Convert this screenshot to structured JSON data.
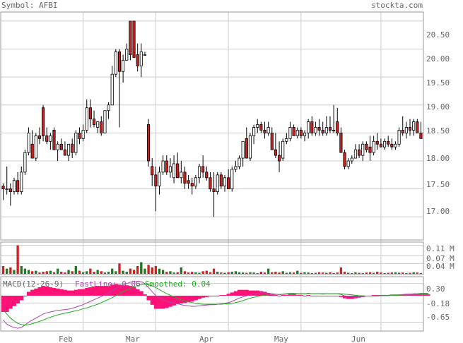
{
  "header": {
    "symbol": "Symbol: AFBI",
    "brand": "stockta.com"
  },
  "price_panel": {
    "y_ticks": [
      "20.50",
      "20.00",
      "19.50",
      "19.00",
      "18.50",
      "18.00",
      "17.50",
      "17.00"
    ]
  },
  "volume_panel": {
    "y_ticks": [
      "0.11 M",
      "0.07 M",
      "0.04 M"
    ]
  },
  "macd_panel": {
    "label": "MACD(12-26-9)",
    "fast_label": "FastLine: 0.06",
    "smooth_label": "Smoothed: 0.04",
    "y_ticks": [
      "0.30",
      "-0.18",
      "-0.65"
    ]
  },
  "x_labels": [
    "Feb",
    "Mar",
    "Apr",
    "May",
    "Jun"
  ],
  "colors": {
    "up": "#ffffff",
    "down": "#cc2222",
    "vol_up": "#227722",
    "vol_down": "#cc2222",
    "fast": "#aa44aa",
    "smooth": "#22aa22",
    "hist": "#ff1177"
  },
  "chart_data": {
    "type": "candlestick",
    "price_ylim": [
      16.6,
      20.65
    ],
    "volume_ylim": [
      0,
      0.12
    ],
    "macd_ylim": [
      -0.85,
      0.45
    ],
    "month_starts": {
      "Feb": 22,
      "Mar": 42,
      "Apr": 62,
      "May": 82,
      "Jun": 104
    },
    "ohlc": [
      [
        17.55,
        17.6,
        17.3,
        17.5
      ],
      [
        17.5,
        17.9,
        17.4,
        17.5
      ],
      [
        17.5,
        17.6,
        17.2,
        17.45
      ],
      [
        17.45,
        17.7,
        17.4,
        17.65
      ],
      [
        17.65,
        17.8,
        17.4,
        17.45
      ],
      [
        17.45,
        17.9,
        17.4,
        17.8
      ],
      [
        17.8,
        18.2,
        17.75,
        18.15
      ],
      [
        18.15,
        18.6,
        18.1,
        18.5
      ],
      [
        18.3,
        18.55,
        18.05,
        18.05
      ],
      [
        18.05,
        18.5,
        18.0,
        18.45
      ],
      [
        18.45,
        18.6,
        18.3,
        18.4
      ],
      [
        18.95,
        19.0,
        18.35,
        18.45
      ],
      [
        18.45,
        18.6,
        18.3,
        18.35
      ],
      [
        18.35,
        18.5,
        18.2,
        18.45
      ],
      [
        18.55,
        18.6,
        18.2,
        18.2
      ],
      [
        18.2,
        18.35,
        18.0,
        18.3
      ],
      [
        18.3,
        18.4,
        18.2,
        18.2
      ],
      [
        18.2,
        18.35,
        18.1,
        18.1
      ],
      [
        18.1,
        18.3,
        18.0,
        18.3
      ],
      [
        18.3,
        18.4,
        18.05,
        18.15
      ],
      [
        18.15,
        18.55,
        18.1,
        18.5
      ],
      [
        18.5,
        18.6,
        18.3,
        18.4
      ],
      [
        18.4,
        18.65,
        18.35,
        18.55
      ],
      [
        18.55,
        19.1,
        18.5,
        18.95
      ],
      [
        18.95,
        19.1,
        18.6,
        18.75
      ],
      [
        18.75,
        18.9,
        18.6,
        18.65
      ],
      [
        18.6,
        18.7,
        18.5,
        18.7
      ],
      [
        18.7,
        18.8,
        18.45,
        18.5
      ],
      [
        18.5,
        18.9,
        18.5,
        18.9
      ],
      [
        18.9,
        19.05,
        18.75,
        19.0
      ],
      [
        19.0,
        19.7,
        19.0,
        19.55
      ],
      [
        19.55,
        20.0,
        19.5,
        19.95
      ],
      [
        19.95,
        20.0,
        18.6,
        19.6
      ],
      [
        19.6,
        19.9,
        19.4,
        19.8
      ],
      [
        19.8,
        20.1,
        19.8,
        20.0
      ],
      [
        20.5,
        20.5,
        19.8,
        19.9
      ],
      [
        20.5,
        20.5,
        19.85,
        19.85
      ],
      [
        19.9,
        20.1,
        19.6,
        19.7
      ],
      [
        19.7,
        20.1,
        19.5,
        19.95
      ],
      [
        19.9,
        19.95,
        19.9,
        19.9
      ],
      [
        18.65,
        18.75,
        17.9,
        18.0
      ],
      [
        17.9,
        18.05,
        17.55,
        17.75
      ],
      [
        17.75,
        17.9,
        17.1,
        17.55
      ],
      [
        17.55,
        17.9,
        17.4,
        17.8
      ],
      [
        17.8,
        18.1,
        17.75,
        18.0
      ],
      [
        18.0,
        18.1,
        17.75,
        17.8
      ],
      [
        17.8,
        18.05,
        17.7,
        17.9
      ],
      [
        17.7,
        18.1,
        17.6,
        17.95
      ],
      [
        17.95,
        18.15,
        17.7,
        17.7
      ],
      [
        17.7,
        18.0,
        17.6,
        17.8
      ],
      [
        17.8,
        17.9,
        17.5,
        17.6
      ],
      [
        17.65,
        17.75,
        17.5,
        17.6
      ],
      [
        17.6,
        17.7,
        17.4,
        17.55
      ],
      [
        17.55,
        17.75,
        17.5,
        17.7
      ],
      [
        17.7,
        17.95,
        17.6,
        17.9
      ],
      [
        17.9,
        18.1,
        17.7,
        17.8
      ],
      [
        17.8,
        17.9,
        17.65,
        17.7
      ],
      [
        17.7,
        17.8,
        17.45,
        17.5
      ],
      [
        17.5,
        17.8,
        17.0,
        17.45
      ],
      [
        17.45,
        17.8,
        17.4,
        17.75
      ],
      [
        17.75,
        17.8,
        17.5,
        17.55
      ],
      [
        17.55,
        17.75,
        17.45,
        17.7
      ],
      [
        17.7,
        17.85,
        17.5,
        17.5
      ],
      [
        17.5,
        17.9,
        17.45,
        17.85
      ],
      [
        17.85,
        18.0,
        17.8,
        17.9
      ],
      [
        17.9,
        18.1,
        17.85,
        18.05
      ],
      [
        18.05,
        18.35,
        17.9,
        18.35
      ],
      [
        18.4,
        18.6,
        18.05,
        18.05
      ],
      [
        18.05,
        18.5,
        18.0,
        18.45
      ],
      [
        18.45,
        18.65,
        18.3,
        18.6
      ],
      [
        18.6,
        18.75,
        18.5,
        18.65
      ],
      [
        18.65,
        18.7,
        18.5,
        18.55
      ],
      [
        18.55,
        18.7,
        18.4,
        18.5
      ],
      [
        18.5,
        18.7,
        18.45,
        18.6
      ],
      [
        18.5,
        18.6,
        18.2,
        18.2
      ],
      [
        18.2,
        18.5,
        18.05,
        18.1
      ],
      [
        18.1,
        18.35,
        17.8,
        18.0
      ],
      [
        18.05,
        18.4,
        18.0,
        18.35
      ],
      [
        18.35,
        18.5,
        18.3,
        18.4
      ],
      [
        18.4,
        18.7,
        18.35,
        18.6
      ],
      [
        18.6,
        18.65,
        18.45,
        18.45
      ],
      [
        18.45,
        18.6,
        18.4,
        18.55
      ],
      [
        18.55,
        18.6,
        18.4,
        18.45
      ],
      [
        18.45,
        18.55,
        18.35,
        18.5
      ],
      [
        18.5,
        18.75,
        18.4,
        18.7
      ],
      [
        18.7,
        18.8,
        18.45,
        18.5
      ],
      [
        18.5,
        18.7,
        18.45,
        18.6
      ],
      [
        18.6,
        18.75,
        18.45,
        18.55
      ],
      [
        18.55,
        18.7,
        18.45,
        18.5
      ],
      [
        18.5,
        18.8,
        18.45,
        18.6
      ],
      [
        18.6,
        18.8,
        18.5,
        18.55
      ],
      [
        18.55,
        19.0,
        18.5,
        18.55
      ],
      [
        18.7,
        18.95,
        18.45,
        18.5
      ],
      [
        18.5,
        18.6,
        18.15,
        18.15
      ],
      [
        18.15,
        18.2,
        17.85,
        17.9
      ],
      [
        17.9,
        18.05,
        17.85,
        18.0
      ],
      [
        18.0,
        18.1,
        17.95,
        18.05
      ],
      [
        18.05,
        18.3,
        18.05,
        18.2
      ],
      [
        18.2,
        18.3,
        18.05,
        18.1
      ],
      [
        18.1,
        18.35,
        18.0,
        18.3
      ],
      [
        18.3,
        18.35,
        18.15,
        18.2
      ],
      [
        18.25,
        18.45,
        18.0,
        18.15
      ],
      [
        18.15,
        18.45,
        18.1,
        18.35
      ],
      [
        18.35,
        18.5,
        18.2,
        18.3
      ],
      [
        18.3,
        18.4,
        18.25,
        18.25
      ],
      [
        18.25,
        18.4,
        18.2,
        18.35
      ],
      [
        18.35,
        18.45,
        18.25,
        18.3
      ],
      [
        18.3,
        18.4,
        18.2,
        18.25
      ],
      [
        18.25,
        18.35,
        18.2,
        18.3
      ],
      [
        18.3,
        18.6,
        18.25,
        18.55
      ],
      [
        18.55,
        18.8,
        18.45,
        18.5
      ],
      [
        18.5,
        18.7,
        18.4,
        18.6
      ],
      [
        18.6,
        18.75,
        18.45,
        18.55
      ],
      [
        18.55,
        18.75,
        18.45,
        18.7
      ],
      [
        18.7,
        18.75,
        18.5,
        18.5
      ],
      [
        18.5,
        18.7,
        18.4,
        18.4
      ]
    ],
    "volume": [
      0.03,
      0.02,
      0.025,
      0.015,
      0.11,
      0.03,
      0.02,
      0.015,
      0.01,
      0.012,
      0.005,
      0.008,
      0.01,
      0.012,
      0.006,
      0.02,
      0.008,
      0.005,
      0.015,
      0.01,
      0.03,
      0.012,
      0.006,
      0.01,
      0.02,
      0.008,
      0.015,
      0.01,
      0.005,
      0.008,
      0.02,
      0.01,
      0.04,
      0.012,
      0.008,
      0.02,
      0.015,
      0.03,
      0.045,
      0.02,
      0.035,
      0.025,
      0.03,
      0.02,
      0.015,
      0.008,
      0.01,
      0.005,
      0.006,
      0.025,
      0.01,
      0.005,
      0.008,
      0.006,
      0.004,
      0.01,
      0.012,
      0.006,
      0.02,
      0.008,
      0.005,
      0.004,
      0.006,
      0.008,
      0.01,
      0.006,
      0.005,
      0.004,
      0.006,
      0.005,
      0.003,
      0.008,
      0.005,
      0.02,
      0.006,
      0.008,
      0.005,
      0.01,
      0.004,
      0.006,
      0.005,
      0.012,
      0.004,
      0.006,
      0.005,
      0.003,
      0.004,
      0.006,
      0.005,
      0.004,
      0.006,
      0.003,
      0.005,
      0.025,
      0.008,
      0.004,
      0.003,
      0.006,
      0.004,
      0.003,
      0.005,
      0.006,
      0.004,
      0.008,
      0.005,
      0.003,
      0.004,
      0.005,
      0.006,
      0.004,
      0.005,
      0.003,
      0.004,
      0.006,
      0.005,
      0.003,
      0.004,
      0.005
    ],
    "macd_fast": [
      -0.6,
      -0.7,
      -0.75,
      -0.78,
      -0.8,
      -0.78,
      -0.72,
      -0.65,
      -0.6,
      -0.55,
      -0.5,
      -0.45,
      -0.42,
      -0.4,
      -0.38,
      -0.36,
      -0.35,
      -0.34,
      -0.33,
      -0.31,
      -0.28,
      -0.25,
      -0.22,
      -0.18,
      -0.14,
      -0.1,
      -0.06,
      -0.02,
      0.02,
      0.06,
      0.12,
      0.18,
      0.22,
      0.26,
      0.3,
      0.33,
      0.35,
      0.35,
      0.34,
      0.3,
      0.2,
      0.1,
      0.0,
      -0.05,
      -0.1,
      -0.14,
      -0.16,
      -0.18,
      -0.2,
      -0.22,
      -0.24,
      -0.25,
      -0.26,
      -0.26,
      -0.25,
      -0.24,
      -0.23,
      -0.22,
      -0.22,
      -0.21,
      -0.2,
      -0.19,
      -0.17,
      -0.14,
      -0.1,
      -0.06,
      -0.03,
      0.0,
      0.02,
      0.04,
      0.06,
      0.07,
      0.07,
      0.06,
      0.05,
      0.04,
      0.03,
      0.04,
      0.05,
      0.06,
      0.06,
      0.05,
      0.05,
      0.05,
      0.06,
      0.05,
      0.05,
      0.05,
      0.04,
      0.05,
      0.05,
      0.05,
      0.05,
      0.03,
      0.0,
      -0.02,
      -0.03,
      -0.03,
      -0.03,
      -0.02,
      -0.01,
      -0.01,
      0.0,
      0.0,
      0.01,
      0.01,
      0.01,
      0.02,
      0.02,
      0.02,
      0.03,
      0.04,
      0.04,
      0.05,
      0.05,
      0.06,
      0.06,
      0.06
    ],
    "macd_smooth": [
      -0.35,
      -0.45,
      -0.55,
      -0.62,
      -0.68,
      -0.71,
      -0.72,
      -0.71,
      -0.69,
      -0.66,
      -0.63,
      -0.6,
      -0.56,
      -0.53,
      -0.5,
      -0.47,
      -0.45,
      -0.43,
      -0.41,
      -0.39,
      -0.37,
      -0.35,
      -0.32,
      -0.3,
      -0.27,
      -0.24,
      -0.21,
      -0.17,
      -0.13,
      -0.09,
      -0.05,
      0.0,
      0.05,
      0.1,
      0.14,
      0.18,
      0.22,
      0.25,
      0.27,
      0.28,
      0.27,
      0.24,
      0.2,
      0.15,
      0.1,
      0.05,
      0.01,
      -0.03,
      -0.07,
      -0.1,
      -0.13,
      -0.15,
      -0.17,
      -0.19,
      -0.2,
      -0.21,
      -0.21,
      -0.21,
      -0.21,
      -0.21,
      -0.21,
      -0.2,
      -0.2,
      -0.19,
      -0.17,
      -0.15,
      -0.12,
      -0.09,
      -0.06,
      -0.04,
      -0.02,
      0.0,
      0.01,
      0.02,
      0.03,
      0.03,
      0.03,
      0.03,
      0.04,
      0.04,
      0.04,
      0.04,
      0.04,
      0.05,
      0.05,
      0.05,
      0.05,
      0.05,
      0.05,
      0.05,
      0.05,
      0.05,
      0.05,
      0.05,
      0.04,
      0.03,
      0.02,
      0.01,
      0.0,
      0.0,
      -0.01,
      -0.01,
      -0.01,
      -0.01,
      0.0,
      0.0,
      0.0,
      0.01,
      0.01,
      0.01,
      0.02,
      0.02,
      0.02,
      0.03,
      0.03,
      0.04,
      0.04,
      0.04
    ]
  }
}
